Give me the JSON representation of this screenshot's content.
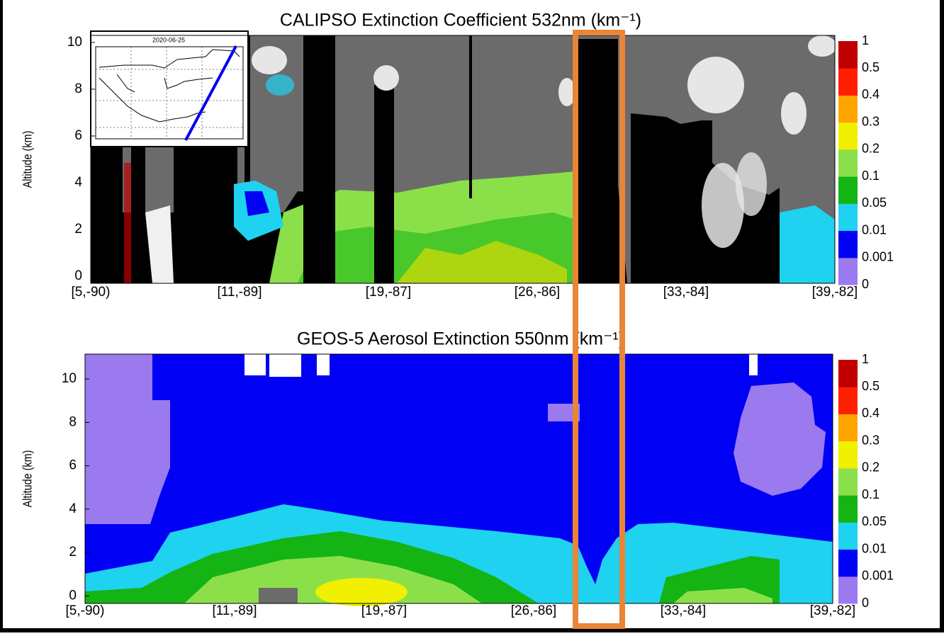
{
  "chart_data": [
    {
      "type": "heatmap",
      "title": "CALIPSO Extinction Coefficient 532nm (km⁻¹)",
      "y_label": "Altitude (km)",
      "inset_title": "2020-06-25",
      "categories": [
        "[5,-90)",
        "[11,-89]",
        "[19,-87]",
        "[26,-86]",
        "[33,-84]",
        "[39,-82]"
      ],
      "ylim": [
        -0.3,
        10.3
      ],
      "yticks": [
        0,
        2,
        4,
        6,
        8,
        10
      ],
      "colorbar": {
        "ticks": [
          0,
          0.001,
          0.01,
          0.05,
          0.1,
          0.2,
          0.3,
          0.4,
          0.5,
          1
        ],
        "colors": [
          "#9b7af0",
          "#0000f5",
          "#1ed2f0",
          "#14b414",
          "#8be04a",
          "#f0f000",
          "#ffa500",
          "#ff2000",
          "#c00000"
        ]
      }
    },
    {
      "type": "heatmap",
      "title": "GEOS-5 Aerosol Extinction 550nm (km⁻¹)",
      "y_label": "Altitude (km)",
      "categories": [
        "[5,-90)",
        "[11,-89]",
        "[19,-87]",
        "[26,-86]",
        "[33,-84]",
        "[39,-82]"
      ],
      "ylim": [
        -0.35,
        11.15
      ],
      "yticks": [
        0,
        2,
        4,
        6,
        8,
        10
      ],
      "colorbar": {
        "ticks": [
          0,
          0.001,
          0.01,
          0.05,
          0.1,
          0.2,
          0.3,
          0.4,
          0.5,
          1
        ],
        "colors": [
          "#9b7af0",
          "#0000f5",
          "#1ed2f0",
          "#14b414",
          "#8be04a",
          "#f0f000",
          "#ffa500",
          "#ff2000",
          "#c00000"
        ]
      }
    }
  ]
}
